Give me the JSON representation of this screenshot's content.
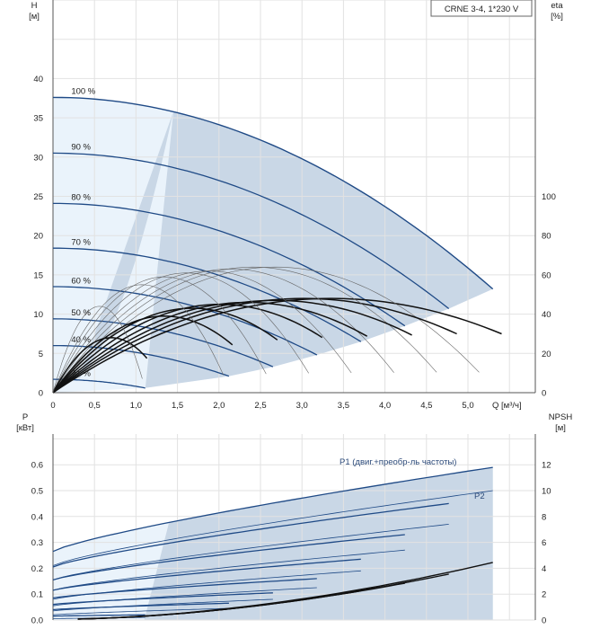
{
  "title_box": "CRNE 3-4, 1*230 V",
  "colors": {
    "grid": "#e2e2e2",
    "axis": "#555555",
    "pump_curve": "#1f4a86",
    "region_fill": "#c9d7e6",
    "light_fill": "#eaf3fb",
    "eta_curve": "#111111"
  },
  "chart_data": [
    {
      "type": "line",
      "name": "QH",
      "xlabel": "Q [м³/ч]",
      "ylabel_left": "H",
      "ylabel_left_unit": "[м]",
      "ylabel_right": "eta",
      "ylabel_right_unit": "[%]",
      "xlim": [
        0,
        5.8
      ],
      "ylim_left": [
        0,
        50
      ],
      "ylim_right": [
        0,
        200
      ],
      "x_ticks": [
        "0",
        "0,5",
        "1,0",
        "1,5",
        "2,0",
        "2,5",
        "3,0",
        "3,5",
        "4,0",
        "4,5",
        "5,0"
      ],
      "y_left_ticks": [
        "0",
        "5",
        "10",
        "15",
        "20",
        "25",
        "30",
        "35",
        "40"
      ],
      "y_right_ticks": [
        "0",
        "20",
        "40",
        "60",
        "80",
        "100"
      ],
      "grid": true,
      "speed_curves": [
        {
          "label": "100 %",
          "h0": 37.6,
          "qmax": 5.3,
          "hend": 13.2
        },
        {
          "label": "90 %",
          "h0": 30.5,
          "qmax": 4.77,
          "hend": 10.7
        },
        {
          "label": "80 %",
          "h0": 24.1,
          "qmax": 4.24,
          "hend": 8.5
        },
        {
          "label": "70 %",
          "h0": 18.4,
          "qmax": 3.71,
          "hend": 6.5
        },
        {
          "label": "60 %",
          "h0": 13.5,
          "qmax": 3.18,
          "hend": 4.8
        },
        {
          "label": "50 %",
          "h0": 9.4,
          "qmax": 2.65,
          "hend": 3.3
        },
        {
          "label": "40 %",
          "h0": 6.0,
          "qmax": 2.12,
          "hend": 2.1
        },
        {
          "label": "21 %",
          "h0": 1.7,
          "qmax": 1.11,
          "hend": 0.6
        }
      ],
      "efficiency_curves_peak_percent": [
        {
          "speed": 1.0,
          "peak": 48
        },
        {
          "speed": 0.9,
          "peak": 48
        },
        {
          "speed": 0.8,
          "peak": 47
        },
        {
          "speed": 0.7,
          "peak": 46
        },
        {
          "speed": 0.6,
          "peak": 45
        },
        {
          "speed": 0.5,
          "peak": 43
        },
        {
          "speed": 0.4,
          "peak": 39
        },
        {
          "speed": 0.21,
          "peak": 28
        }
      ]
    },
    {
      "type": "line",
      "name": "Power/NPSH",
      "xlabel": "Q [м³/ч]",
      "ylabel_left": "P",
      "ylabel_left_unit": "[кВт]",
      "ylabel_right": "NPSH",
      "ylabel_right_unit": "[м]",
      "xlim": [
        0,
        5.8
      ],
      "ylim_left": [
        0,
        0.8
      ],
      "ylim_right": [
        0,
        16
      ],
      "y_left_ticks": [
        "0.0",
        "0.1",
        "0.2",
        "0.3",
        "0.4",
        "0.5",
        "0.6"
      ],
      "y_right_ticks": [
        "0",
        "2",
        "4",
        "6",
        "8",
        "10",
        "12"
      ],
      "grid": true,
      "annotations": [
        "P1 (двиг.+преобр-ль частоты)",
        "P2"
      ],
      "p1_curves": [
        {
          "speed": 1.0,
          "p0": 0.265,
          "pend": 0.59
        },
        {
          "speed": 0.9,
          "p0": 0.205,
          "pend": 0.45
        },
        {
          "speed": 0.8,
          "p0": 0.155,
          "pend": 0.33
        },
        {
          "speed": 0.7,
          "p0": 0.115,
          "pend": 0.235
        },
        {
          "speed": 0.6,
          "p0": 0.085,
          "pend": 0.16
        },
        {
          "speed": 0.5,
          "p0": 0.06,
          "pend": 0.105
        },
        {
          "speed": 0.4,
          "p0": 0.04,
          "pend": 0.065
        },
        {
          "speed": 0.21,
          "p0": 0.015,
          "pend": 0.02
        }
      ],
      "p2_curves": [
        {
          "speed": 1.0,
          "p0": 0.21,
          "pend": 0.5
        },
        {
          "speed": 0.9,
          "p0": 0.155,
          "pend": 0.37
        },
        {
          "speed": 0.8,
          "p0": 0.115,
          "pend": 0.27
        },
        {
          "speed": 0.7,
          "p0": 0.08,
          "pend": 0.19
        },
        {
          "speed": 0.6,
          "p0": 0.055,
          "pend": 0.125
        },
        {
          "speed": 0.5,
          "p0": 0.035,
          "pend": 0.08
        },
        {
          "speed": 0.4,
          "p0": 0.02,
          "pend": 0.045
        },
        {
          "speed": 0.21,
          "p0": 0.005,
          "pend": 0.01
        }
      ],
      "npsh_curves": [
        {
          "speed": 1.0,
          "qend": 5.3,
          "nend": 4.4
        },
        {
          "speed": 0.9,
          "qend": 4.77,
          "nend": 3.5
        },
        {
          "speed": 0.8,
          "qend": 4.24,
          "nend": 2.8
        },
        {
          "speed": 0.7,
          "qend": 3.71,
          "nend": 2.2
        },
        {
          "speed": 0.6,
          "qend": 3.18,
          "nend": 1.7
        }
      ]
    }
  ]
}
